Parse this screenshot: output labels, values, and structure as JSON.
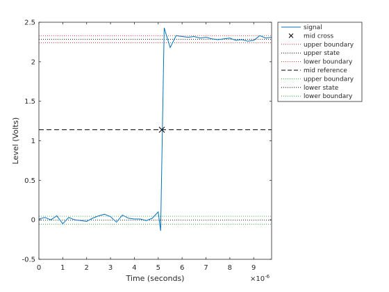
{
  "chart_data": {
    "type": "line",
    "xlabel": "Time (seconds)",
    "ylabel": "Level (Volts)",
    "x_exponent_label": "×10",
    "x_exponent_power": "-6",
    "xlim": [
      0,
      9.75
    ],
    "ylim": [
      -0.5,
      2.5
    ],
    "x_ticks": [
      0,
      1,
      2,
      3,
      4,
      5,
      6,
      7,
      8,
      9
    ],
    "x_tick_labels": [
      "0",
      "1",
      "2",
      "3",
      "4",
      "5",
      "6",
      "7",
      "8",
      "9"
    ],
    "y_ticks": [
      -0.5,
      0,
      0.5,
      1,
      1.5,
      2,
      2.5
    ],
    "y_tick_labels": [
      "-0.5",
      "0",
      "0.5",
      "1",
      "1.5",
      "2",
      "2.5"
    ],
    "grid": false,
    "legend_placement": "outside-top-right",
    "colors": {
      "signal": "#0072bd",
      "red_dotted": "#d62728",
      "black": "#000000",
      "green_dotted": "#2ca02c",
      "axes": "#262626"
    },
    "series": [
      {
        "name": "signal",
        "style": "solid",
        "color": "#0072bd",
        "x": [
          0,
          0.25,
          0.5,
          0.75,
          1.0,
          1.25,
          1.5,
          1.75,
          2.0,
          2.25,
          2.5,
          2.75,
          3.0,
          3.25,
          3.5,
          3.75,
          4.0,
          4.25,
          4.5,
          4.75,
          5.0,
          5.1,
          5.25,
          5.5,
          5.75,
          6.0,
          6.25,
          6.5,
          6.75,
          7.0,
          7.25,
          7.5,
          7.75,
          8.0,
          8.25,
          8.5,
          8.75,
          9.0,
          9.25,
          9.5,
          9.75
        ],
        "y": [
          0.01,
          0.03,
          0.0,
          0.05,
          -0.05,
          0.03,
          0.0,
          -0.01,
          -0.02,
          0.02,
          0.05,
          0.07,
          0.04,
          -0.03,
          0.06,
          0.02,
          0.01,
          0.01,
          -0.01,
          0.02,
          0.1,
          -0.14,
          2.43,
          2.18,
          2.33,
          2.32,
          2.31,
          2.32,
          2.3,
          2.31,
          2.29,
          2.28,
          2.29,
          2.3,
          2.27,
          2.28,
          2.26,
          2.27,
          2.33,
          2.3,
          2.31
        ]
      },
      {
        "name": "mid cross",
        "style": "marker-x",
        "color": "#000000",
        "x": [
          5.15
        ],
        "y": [
          1.14
        ]
      }
    ],
    "reference_lines": [
      {
        "name": "upper boundary",
        "y": 2.33,
        "color": "#d62728",
        "style": "dotted"
      },
      {
        "name": "upper state",
        "y": 2.285,
        "color": "#000000",
        "style": "dotted"
      },
      {
        "name": "lower boundary",
        "y": 2.24,
        "color": "#d62728",
        "style": "dotted"
      },
      {
        "name": "mid reference",
        "y": 1.14,
        "color": "#000000",
        "style": "dashed"
      },
      {
        "name": "upper boundary",
        "y": 0.045,
        "color": "#2ca02c",
        "style": "dotted"
      },
      {
        "name": "lower state",
        "y": -0.005,
        "color": "#000000",
        "style": "dotted"
      },
      {
        "name": "lower boundary",
        "y": -0.055,
        "color": "#2ca02c",
        "style": "dotted"
      }
    ],
    "legend": [
      {
        "label": "signal",
        "style": "solid",
        "color": "#0072bd"
      },
      {
        "label": "mid cross",
        "style": "marker-x",
        "color": "#000000"
      },
      {
        "label": "upper boundary",
        "style": "dotted",
        "color": "#d62728"
      },
      {
        "label": "upper state",
        "style": "dotted",
        "color": "#000000"
      },
      {
        "label": "lower boundary",
        "style": "dotted",
        "color": "#d62728"
      },
      {
        "label": "mid reference",
        "style": "dashed",
        "color": "#000000"
      },
      {
        "label": "upper boundary",
        "style": "dotted",
        "color": "#2ca02c"
      },
      {
        "label": "lower state",
        "style": "dotted",
        "color": "#000000"
      },
      {
        "label": "lower boundary",
        "style": "dotted",
        "color": "#2ca02c"
      }
    ]
  }
}
